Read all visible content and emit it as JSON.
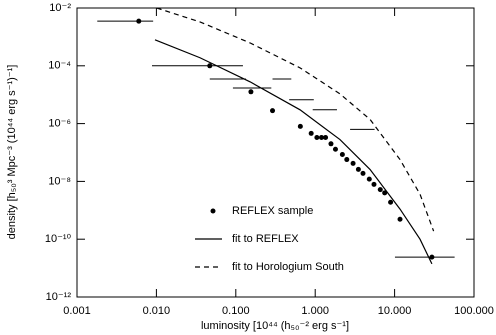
{
  "chart_data": {
    "type": "scatter",
    "xlabel": "luminosity [10⁴⁴ (h₅₀⁻² erg s⁻¹]",
    "ylabel": "density  [h₅₀³ Mpc⁻³ (10⁴⁴ erg s⁻¹)⁻¹]",
    "xscale": "log",
    "yscale": "log",
    "xlim": [
      0.001,
      100
    ],
    "ylim": [
      1e-12,
      0.01
    ],
    "xticks": [
      {
        "value": 0.001,
        "label": "0.001"
      },
      {
        "value": 0.01,
        "label": "0.010"
      },
      {
        "value": 0.1,
        "label": "0.100"
      },
      {
        "value": 1,
        "label": "1.000"
      },
      {
        "value": 10,
        "label": "10.000"
      },
      {
        "value": 100,
        "label": "100.000"
      }
    ],
    "yticks": [
      {
        "value": 1e-12,
        "label": "10⁻¹²"
      },
      {
        "value": 1e-10,
        "label": "10⁻¹⁰"
      },
      {
        "value": 1e-08,
        "label": "10⁻⁸"
      },
      {
        "value": 1e-06,
        "label": "10⁻⁶"
      },
      {
        "value": 0.0001,
        "label": "10⁻⁴"
      },
      {
        "value": 0.01,
        "label": "10⁻²"
      }
    ],
    "series": [
      {
        "name": "REFLEX sample",
        "kind": "points",
        "color": "#000000",
        "x": [
          0.006,
          0.047,
          0.155,
          0.29,
          0.65,
          0.89,
          1.05,
          1.2,
          1.35,
          1.58,
          1.8,
          2.2,
          2.5,
          3.0,
          3.5,
          4.0,
          4.8,
          5.5,
          6.6,
          7.5,
          8.9,
          11.7,
          29.5
        ],
        "values": [
          0.0035,
          0.0001,
          1.26e-05,
          2.8e-06,
          8e-07,
          4.6e-07,
          3.3e-07,
          3.3e-07,
          3.3e-07,
          2e-07,
          1.3e-07,
          8.5e-08,
          5.7e-08,
          4.2e-08,
          2.6e-08,
          1.9e-08,
          1.2e-08,
          7.9e-09,
          5.2e-09,
          4e-09,
          1.9e-09,
          4.9e-10,
          2.4e-11
        ]
      },
      {
        "name": "fit to REFLEX",
        "kind": "solid",
        "color": "#000000",
        "x": [
          0.0096,
          0.0354,
          0.151,
          0.644,
          2.05,
          4.9,
          11.7,
          20.9,
          29.5
        ],
        "values": [
          0.00079,
          0.00019,
          2.8e-05,
          3e-06,
          2.8e-07,
          2.6e-08,
          1.1e-09,
          1e-10,
          1.4e-11
        ]
      },
      {
        "name": "fit to Horologium South",
        "kind": "dashed",
        "color": "#000000",
        "x": [
          0.0101,
          0.0354,
          0.151,
          0.644,
          2.05,
          4.9,
          11.7,
          20.9,
          31
        ],
        "values": [
          0.01,
          0.0033,
          0.00062,
          8.5e-05,
          1.07e-05,
          1.4e-06,
          5.7e-08,
          3.6e-09,
          1.9e-10
        ]
      }
    ],
    "bars": {
      "x_low": [
        0.0018,
        0.0088,
        0.047,
        0.092,
        0.29,
        0.47,
        0.93,
        2.75,
        10.1
      ],
      "x_high": [
        0.0091,
        0.123,
        0.134,
        0.28,
        0.5,
        0.96,
        1.88,
        5.6,
        57
      ],
      "values": [
        0.0035,
        0.0001,
        3.5e-05,
        1.7e-05,
        3.5e-05,
        6.7e-06,
        3e-06,
        6.3e-07,
        2.4e-11
      ]
    }
  }
}
